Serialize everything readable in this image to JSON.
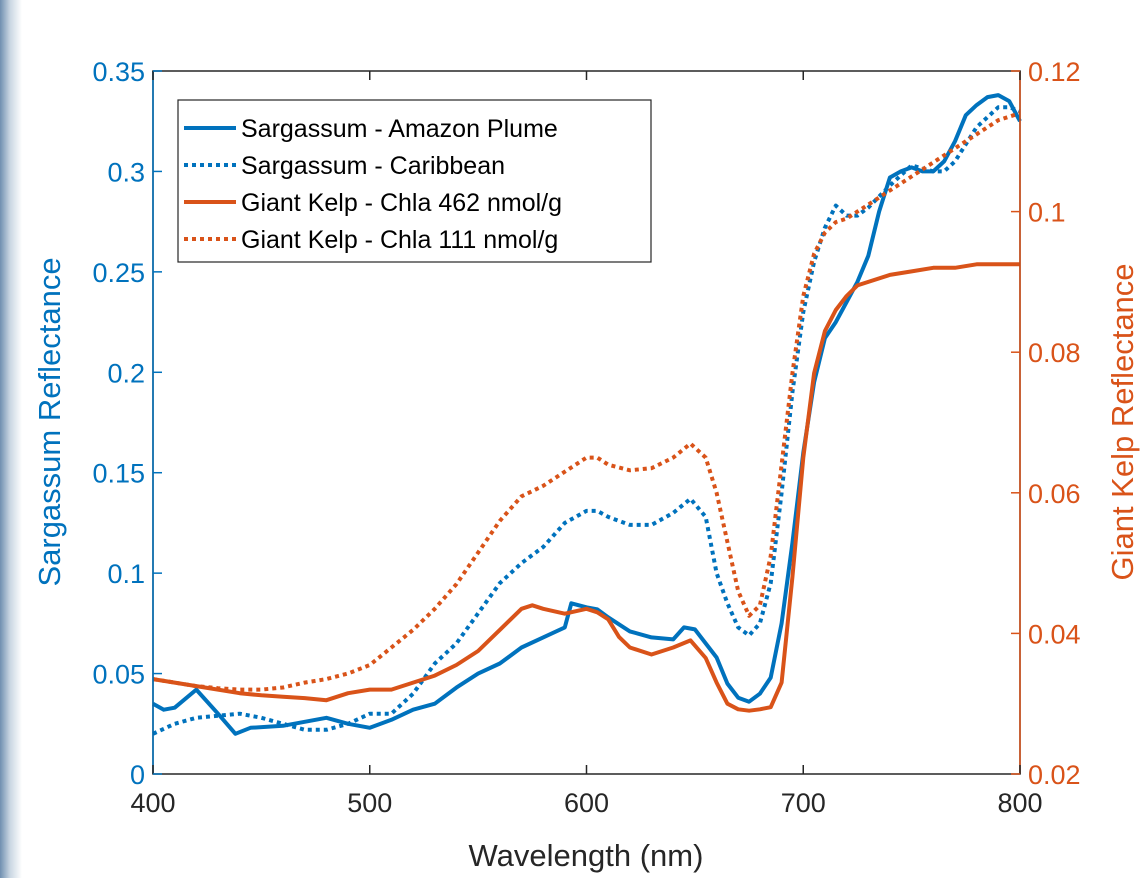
{
  "chart_data": {
    "type": "line",
    "xlabel": "Wavelength (nm)",
    "ylabel_left": "Sargassum Reflectance",
    "ylabel_right": "Giant Kelp Reflectance",
    "xlim": [
      400,
      800
    ],
    "ylim_left": [
      0,
      0.35
    ],
    "ylim_right": [
      0.02,
      0.12
    ],
    "x_ticks": [
      400,
      500,
      600,
      700,
      800
    ],
    "y_ticks_left": [
      "0",
      "0.05",
      "0.1",
      "0.15",
      "0.2",
      "0.25",
      "0.3",
      "0.35"
    ],
    "y_ticks_right": [
      "0.02",
      "0.04",
      "0.06",
      "0.08",
      "0.1",
      "0.12"
    ],
    "grid": false,
    "legend_position": "top-left",
    "colors": {
      "left_axis": "#0072BD",
      "right_axis": "#D95319"
    },
    "series": [
      {
        "name": "Sargassum - Amazon Plume",
        "axis": "left",
        "style": "solid",
        "color": "#0072BD",
        "x": [
          400,
          405,
          410,
          420,
          430,
          438,
          445,
          460,
          470,
          480,
          490,
          500,
          510,
          520,
          530,
          540,
          550,
          560,
          570,
          580,
          590,
          593,
          600,
          605,
          610,
          620,
          630,
          640,
          645,
          650,
          660,
          665,
          670,
          675,
          680,
          685,
          690,
          695,
          700,
          705,
          710,
          715,
          720,
          725,
          730,
          735,
          740,
          745,
          750,
          755,
          760,
          765,
          770,
          775,
          780,
          785,
          790,
          795,
          800
        ],
        "y": [
          0.035,
          0.032,
          0.033,
          0.042,
          0.03,
          0.02,
          0.023,
          0.024,
          0.026,
          0.028,
          0.025,
          0.023,
          0.027,
          0.032,
          0.035,
          0.043,
          0.05,
          0.055,
          0.063,
          0.068,
          0.073,
          0.085,
          0.083,
          0.082,
          0.078,
          0.071,
          0.068,
          0.067,
          0.073,
          0.072,
          0.058,
          0.045,
          0.038,
          0.036,
          0.04,
          0.048,
          0.075,
          0.115,
          0.16,
          0.195,
          0.217,
          0.225,
          0.235,
          0.245,
          0.258,
          0.28,
          0.297,
          0.3,
          0.302,
          0.3,
          0.3,
          0.305,
          0.315,
          0.328,
          0.333,
          0.337,
          0.338,
          0.335,
          0.325
        ]
      },
      {
        "name": "Sargassum - Caribbean",
        "axis": "left",
        "style": "dotted",
        "color": "#0072BD",
        "x": [
          400,
          410,
          420,
          430,
          440,
          450,
          460,
          470,
          480,
          490,
          500,
          510,
          520,
          530,
          540,
          550,
          560,
          570,
          580,
          590,
          600,
          605,
          610,
          620,
          630,
          640,
          648,
          655,
          660,
          665,
          670,
          675,
          680,
          685,
          690,
          695,
          700,
          705,
          710,
          715,
          720,
          725,
          730,
          740,
          750,
          760,
          765,
          770,
          780,
          790,
          795,
          800
        ],
        "y": [
          0.02,
          0.025,
          0.028,
          0.029,
          0.03,
          0.028,
          0.025,
          0.022,
          0.022,
          0.025,
          0.03,
          0.03,
          0.04,
          0.055,
          0.065,
          0.08,
          0.095,
          0.105,
          0.113,
          0.125,
          0.131,
          0.131,
          0.128,
          0.124,
          0.124,
          0.13,
          0.137,
          0.128,
          0.1,
          0.085,
          0.073,
          0.069,
          0.075,
          0.095,
          0.14,
          0.19,
          0.23,
          0.255,
          0.272,
          0.283,
          0.278,
          0.278,
          0.282,
          0.293,
          0.303,
          0.3,
          0.3,
          0.305,
          0.322,
          0.332,
          0.332,
          0.33
        ]
      },
      {
        "name": "Giant Kelp - Chla 462 nmol/g",
        "axis": "right",
        "style": "solid",
        "color": "#D95319",
        "x": [
          400,
          410,
          420,
          430,
          440,
          450,
          460,
          470,
          480,
          490,
          500,
          510,
          520,
          530,
          540,
          550,
          560,
          570,
          575,
          580,
          590,
          600,
          605,
          610,
          615,
          620,
          630,
          640,
          648,
          655,
          660,
          665,
          670,
          675,
          680,
          685,
          690,
          695,
          700,
          705,
          710,
          715,
          720,
          725,
          730,
          740,
          750,
          760,
          770,
          780,
          790,
          795,
          800
        ],
        "y": [
          0.0335,
          0.033,
          0.0325,
          0.032,
          0.0315,
          0.0312,
          0.031,
          0.0308,
          0.0305,
          0.0315,
          0.032,
          0.032,
          0.033,
          0.034,
          0.0355,
          0.0375,
          0.0405,
          0.0435,
          0.044,
          0.0435,
          0.0428,
          0.0435,
          0.043,
          0.042,
          0.0395,
          0.038,
          0.037,
          0.038,
          0.039,
          0.0365,
          0.033,
          0.03,
          0.0292,
          0.029,
          0.0292,
          0.0295,
          0.033,
          0.048,
          0.065,
          0.077,
          0.083,
          0.086,
          0.088,
          0.0895,
          0.09,
          0.091,
          0.0915,
          0.092,
          0.092,
          0.0925,
          0.0925,
          0.0925,
          0.0925
        ]
      },
      {
        "name": "Giant Kelp - Chla 111 nmol/g",
        "axis": "right",
        "style": "dotted",
        "color": "#D95319",
        "x": [
          400,
          410,
          420,
          430,
          440,
          450,
          460,
          470,
          480,
          490,
          500,
          510,
          520,
          530,
          540,
          550,
          560,
          570,
          580,
          590,
          600,
          605,
          610,
          620,
          630,
          640,
          648,
          655,
          660,
          665,
          670,
          675,
          680,
          685,
          690,
          695,
          700,
          705,
          710,
          715,
          720,
          725,
          730,
          740,
          750,
          760,
          770,
          780,
          790,
          800
        ],
        "y": [
          0.0335,
          0.033,
          0.0325,
          0.0322,
          0.032,
          0.032,
          0.0323,
          0.033,
          0.0335,
          0.0343,
          0.0355,
          0.038,
          0.0405,
          0.0435,
          0.047,
          0.0515,
          0.056,
          0.0595,
          0.061,
          0.063,
          0.065,
          0.065,
          0.064,
          0.0632,
          0.0635,
          0.065,
          0.067,
          0.065,
          0.06,
          0.053,
          0.046,
          0.0425,
          0.044,
          0.051,
          0.064,
          0.077,
          0.088,
          0.094,
          0.097,
          0.0985,
          0.099,
          0.1,
          0.101,
          0.103,
          0.105,
          0.107,
          0.109,
          0.111,
          0.113,
          0.114
        ]
      }
    ]
  }
}
